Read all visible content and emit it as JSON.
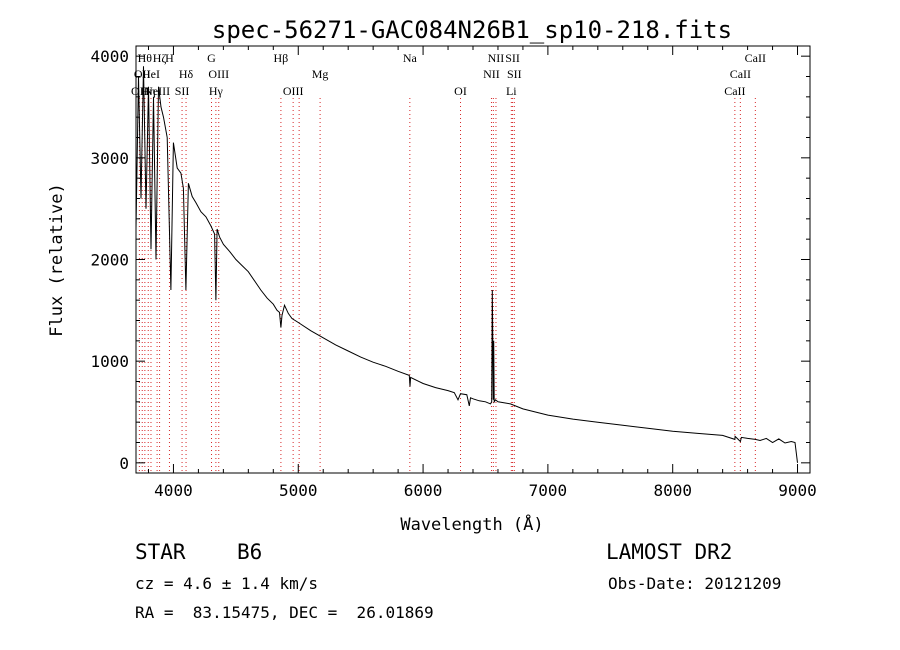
{
  "chart_data": {
    "type": "line",
    "title": "spec-56271-GAC084N26B1_sp10-218.fits",
    "xlabel": "Wavelength (Å)",
    "ylabel": "Flux (relative)",
    "xlim": [
      3700,
      9100
    ],
    "ylim": [
      -100,
      4100
    ],
    "xticks": [
      4000,
      5000,
      6000,
      7000,
      8000,
      9000
    ],
    "yticks": [
      0,
      1000,
      2000,
      3000,
      4000
    ],
    "grid": false,
    "line_color": "#000000",
    "marker_color": "#d62728",
    "x": [
      3700,
      3720,
      3740,
      3760,
      3780,
      3800,
      3820,
      3840,
      3860,
      3880,
      3900,
      3920,
      3950,
      3980,
      4000,
      4030,
      4060,
      4080,
      4100,
      4120,
      4150,
      4180,
      4220,
      4260,
      4300,
      4330,
      4340,
      4350,
      4370,
      4400,
      4450,
      4500,
      4550,
      4600,
      4700,
      4750,
      4800,
      4830,
      4850,
      4861,
      4870,
      4890,
      4920,
      4950,
      5000,
      5100,
      5200,
      5300,
      5400,
      5500,
      5600,
      5700,
      5800,
      5890,
      5895,
      5900,
      6000,
      6100,
      6200,
      6250,
      6280,
      6300,
      6350,
      6370,
      6380,
      6400,
      6450,
      6500,
      6540,
      6550,
      6555,
      6558,
      6562,
      6566,
      6570,
      6580,
      6600,
      6700,
      6800,
      7000,
      7200,
      7400,
      7600,
      7800,
      8000,
      8200,
      8400,
      8498,
      8500,
      8542,
      8550,
      8600,
      8662,
      8700,
      8750,
      8800,
      8850,
      8900,
      8950,
      8980,
      9000
    ],
    "y": [
      2300,
      3800,
      2600,
      3900,
      2500,
      3700,
      2100,
      3600,
      2000,
      3700,
      3500,
      3400,
      3200,
      1700,
      3150,
      2900,
      2850,
      2700,
      1700,
      2750,
      2620,
      2560,
      2470,
      2420,
      2330,
      2250,
      1600,
      2300,
      2220,
      2150,
      2080,
      2000,
      1940,
      1880,
      1700,
      1620,
      1560,
      1500,
      1480,
      1330,
      1450,
      1550,
      1470,
      1420,
      1380,
      1300,
      1230,
      1160,
      1100,
      1040,
      990,
      950,
      900,
      860,
      750,
      840,
      780,
      740,
      710,
      690,
      620,
      680,
      670,
      560,
      640,
      630,
      610,
      600,
      580,
      600,
      1700,
      1300,
      620,
      1200,
      600,
      620,
      600,
      580,
      530,
      470,
      430,
      400,
      370,
      340,
      310,
      290,
      270,
      230,
      260,
      210,
      250,
      240,
      230,
      220,
      240,
      200,
      235,
      195,
      210,
      200,
      0
    ],
    "lines": [
      {
        "wave": 3727,
        "labels": [
          "OII"
        ],
        "row": 3
      },
      {
        "wave": 3750,
        "labels": [
          "OII"
        ],
        "row": 2
      },
      {
        "wave": 3771,
        "labels": [
          "Hθ"
        ],
        "row": 1
      },
      {
        "wave": 3798,
        "labels": [
          "Hη"
        ],
        "row": 3
      },
      {
        "wave": 3820,
        "labels": [
          "HeI"
        ],
        "row": 2
      },
      {
        "wave": 3869,
        "labels": [
          "NeIII"
        ],
        "row": 3
      },
      {
        "wave": 3889,
        "labels": [
          "Hζ"
        ],
        "row": 1
      },
      {
        "wave": 3968,
        "labels": [
          "H"
        ],
        "row": 1
      },
      {
        "wave": 4069,
        "labels": [
          "SII"
        ],
        "row": 3
      },
      {
        "wave": 4101,
        "labels": [
          "Hδ"
        ],
        "row": 2
      },
      {
        "wave": 4305,
        "labels": [
          "G"
        ],
        "row": 1
      },
      {
        "wave": 4340,
        "labels": [
          "Hγ"
        ],
        "row": 3
      },
      {
        "wave": 4363,
        "labels": [
          "OIII"
        ],
        "row": 2
      },
      {
        "wave": 4861,
        "labels": [
          "Hβ"
        ],
        "row": 1
      },
      {
        "wave": 4959,
        "labels": [
          "OIII"
        ],
        "row": 3
      },
      {
        "wave": 5007,
        "labels": [],
        "row": 3
      },
      {
        "wave": 5175,
        "labels": [
          "Mg"
        ],
        "row": 2
      },
      {
        "wave": 5894,
        "labels": [
          "Na"
        ],
        "row": 1
      },
      {
        "wave": 6300,
        "labels": [
          "OI"
        ],
        "row": 3
      },
      {
        "wave": 6548,
        "labels": [
          "NII"
        ],
        "row": 2
      },
      {
        "wave": 6584,
        "labels": [
          "NII"
        ],
        "row": 1
      },
      {
        "wave": 6563,
        "labels": [],
        "row": 1
      },
      {
        "wave": 6707,
        "labels": [
          "Li"
        ],
        "row": 3
      },
      {
        "wave": 6717,
        "labels": [
          "SII"
        ],
        "row": 1
      },
      {
        "wave": 6731,
        "labels": [
          "SII"
        ],
        "row": 2
      },
      {
        "wave": 8498,
        "labels": [
          "CaII"
        ],
        "row": 3
      },
      {
        "wave": 8542,
        "labels": [
          "CaII"
        ],
        "row": 2
      },
      {
        "wave": 8662,
        "labels": [
          "CaII"
        ],
        "row": 1
      }
    ]
  },
  "info": {
    "class": "STAR",
    "subclass": "B6",
    "survey": "LAMOST DR2",
    "cz": "cz = 4.6 ± 1.4 km/s",
    "obs_date": "Obs-Date: 20121209",
    "radec": "RA =  83.15475, DEC =  26.01869"
  }
}
